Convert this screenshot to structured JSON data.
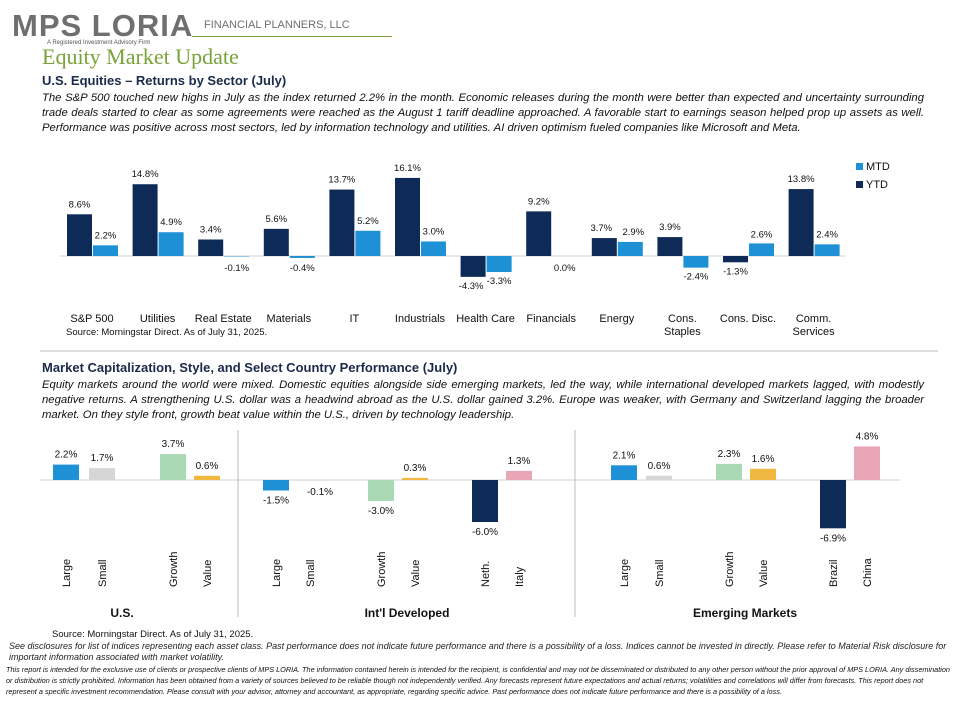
{
  "header": {
    "logo_text": "MPS LORIA",
    "logo_sub": "FINANCIAL PLANNERS, LLC",
    "logo_tagline": "A Registered Investment Advisory Firm",
    "title": "Equity Market Update"
  },
  "section1": {
    "title": "U.S. Equities – Returns by Sector (July)",
    "text": "The S&P 500 touched new highs in July as the index returned 2.2% in the month. Economic releases during the month were better than expected and uncertainty surrounding trade deals started to clear as some agreements were reached as the August 1 tariff deadline approached. A favorable start to earnings season helped prop up assets as well. Performance was positive across most sectors, led by information technology and utilities. AI driven optimism fueled companies like Microsoft and Meta.",
    "source": "Source: Morningstar Direct. As of July 31, 2025."
  },
  "section2": {
    "title": "Market Capitalization, Style, and Select Country Performance (July)",
    "text": "Equity markets around the world were mixed. Domestic equities alongside side emerging markets, led the way, while international developed markets lagged, with modestly negative returns. A strengthening U.S. dollar was a headwind abroad as the U.S. dollar gained 3.2%. Europe was weaker, with Germany and Switzerland lagging the broader market. On they style front, growth beat value within the U.S., driven by technology leadership.",
    "source": "Source: Morningstar Direct. As of July 31, 2025."
  },
  "disclosures": {
    "line1": "See disclosures for list of indices representing each asset class. Past performance does not indicate future performance and there is a possibility of a loss. Indices cannot be invested in directly. Please refer to Material Risk disclosure for important information associated with market volatility.",
    "footer": "This report is intended for the exclusive use of clients or prospective clients of MPS LORIA. The information contained herein is intended for the recipient, is confidential and may not be disseminated or distributed to any other person without the prior approval of MPS LORIA. Any dissemination or distribution is strictly prohibited. Information has been obtained from a variety of sources believed to be reliable though not independently verified. Any forecasts represent future expectations and actual returns; volatilities and correlations will differ from forecasts. This report does not represent a specific investment recommendation. Please consult with your advisor, attorney and accountant, as appropriate, regarding specific advice. Past performance does not indicate future performance and there is a possibility of a loss."
  },
  "colors": {
    "ytd": "#0d2b56",
    "mtd": "#1e90d6",
    "grey": "#d6d6d6",
    "green": "#a8d8b4",
    "orange": "#f0b840",
    "navy": "#0d2b56",
    "pink": "#e8a6b6",
    "accent_green": "#7aa23a"
  },
  "chart_data": [
    {
      "type": "bar",
      "categories": [
        "S&P 500",
        "Utilities",
        "Real Estate",
        "Materials",
        "IT",
        "Industrials",
        "Health Care",
        "Financials",
        "Energy",
        "Cons. Staples",
        "Cons. Disc.",
        "Comm. Services"
      ],
      "series": [
        {
          "name": "YTD",
          "values": [
            8.6,
            14.8,
            3.4,
            5.6,
            13.7,
            16.1,
            -4.3,
            9.2,
            3.7,
            3.9,
            -1.3,
            13.8
          ]
        },
        {
          "name": "MTD",
          "values": [
            2.2,
            4.9,
            -0.1,
            -0.4,
            5.2,
            3.0,
            -3.3,
            0.0,
            2.9,
            -2.4,
            2.6,
            2.4
          ]
        }
      ],
      "legend": {
        "position": "top-right",
        "order": [
          "MTD",
          "YTD"
        ]
      }
    },
    {
      "type": "bar",
      "groups": [
        {
          "name": "U.S.",
          "categories": [
            "Large",
            "Small",
            "Growth",
            "Value"
          ],
          "values": [
            2.2,
            1.7,
            3.7,
            0.6
          ],
          "colors": [
            "#1e90d6",
            "#d6d6d6",
            "#a8d8b4",
            "#f0b840"
          ]
        },
        {
          "name": "Int'l Developed",
          "categories": [
            "Large",
            "Small",
            "Growth",
            "Value",
            "Neth.",
            "Italy"
          ],
          "values": [
            -1.5,
            -0.1,
            -3.0,
            0.3,
            -6.0,
            1.3
          ],
          "colors": [
            "#1e90d6",
            "#d6d6d6",
            "#a8d8b4",
            "#f0b840",
            "#0d2b56",
            "#e8a6b6"
          ]
        },
        {
          "name": "Emerging Markets",
          "categories": [
            "Large",
            "Small",
            "Growth",
            "Value",
            "Brazil",
            "China"
          ],
          "values": [
            2.1,
            0.6,
            2.3,
            1.6,
            -6.9,
            4.8
          ],
          "colors": [
            "#1e90d6",
            "#d6d6d6",
            "#a8d8b4",
            "#f0b840",
            "#0d2b56",
            "#e8a6b6"
          ]
        }
      ]
    }
  ]
}
